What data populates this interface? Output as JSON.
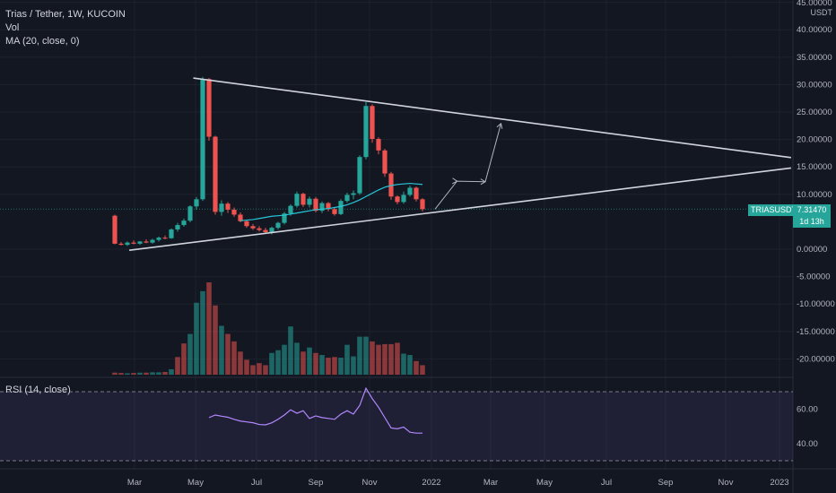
{
  "legend": {
    "symbol_line": "Trias / Tether, 1W, KUCOIN",
    "volume": "Vol",
    "ma": "MA (20, close, 0)",
    "rsi": "RSI (14, close)"
  },
  "price_axis": {
    "quote": "USDT",
    "ticks": [
      "45.00000",
      "40.00000",
      "35.00000",
      "30.00000",
      "25.00000",
      "20.00000",
      "15.00000",
      "10.00000",
      "0.00000",
      "-5.00000",
      "-10.00000",
      "-15.00000",
      "-20.00000"
    ],
    "tick_values": [
      45,
      40,
      35,
      30,
      25,
      20,
      15,
      10,
      0,
      -5,
      -10,
      -15,
      -20
    ]
  },
  "rsi_axis": {
    "ticks": [
      "60.00",
      "40.00"
    ],
    "tick_values": [
      60,
      40
    ],
    "upper_band": 70,
    "lower_band": 30
  },
  "time_axis": {
    "labels": [
      "Mar",
      "May",
      "Jul",
      "Sep",
      "Nov",
      "2022",
      "Mar",
      "May",
      "Jul",
      "Sep",
      "Nov",
      "2023"
    ]
  },
  "last_price": {
    "symbol": "TRIASUSDT",
    "value": "7.31470",
    "countdown": "1d 13h"
  },
  "colors": {
    "up": "#26a69a",
    "down": "#ef5350",
    "ma": "#26c6da",
    "rsi": "#b388ff",
    "background": "#131722",
    "trendline": "#d1d4dc"
  },
  "chart_data": {
    "type": "candlestick",
    "title": "Trias / Tether, 1W, KUCOIN",
    "ylim": [
      -22,
      45
    ],
    "candles_ohlc": [
      [
        6.1,
        6.3,
        0.9,
        1.0
      ],
      [
        1.0,
        1.3,
        0.7,
        0.8
      ],
      [
        0.8,
        1.4,
        0.6,
        1.2
      ],
      [
        1.2,
        1.6,
        0.9,
        1.0
      ],
      [
        1.0,
        1.5,
        0.8,
        1.4
      ],
      [
        1.4,
        1.8,
        1.1,
        1.2
      ],
      [
        1.2,
        1.9,
        1.0,
        1.7
      ],
      [
        1.7,
        2.3,
        1.4,
        2.1
      ],
      [
        2.1,
        2.5,
        1.8,
        2.0
      ],
      [
        2.0,
        3.8,
        1.9,
        3.6
      ],
      [
        3.6,
        4.8,
        3.2,
        4.4
      ],
      [
        4.4,
        5.6,
        4.1,
        5.2
      ],
      [
        5.2,
        8.0,
        4.9,
        7.8
      ],
      [
        7.8,
        9.5,
        7.2,
        9.1
      ],
      [
        9.1,
        31.4,
        8.8,
        31.0
      ],
      [
        31.0,
        31.2,
        19.8,
        20.5
      ],
      [
        20.5,
        20.7,
        6.3,
        6.8
      ],
      [
        6.8,
        8.9,
        6.1,
        8.3
      ],
      [
        8.3,
        8.6,
        6.6,
        7.2
      ],
      [
        7.2,
        7.6,
        5.9,
        6.3
      ],
      [
        6.3,
        6.7,
        4.9,
        5.1
      ],
      [
        5.1,
        5.4,
        3.9,
        4.2
      ],
      [
        4.2,
        4.6,
        3.5,
        3.8
      ],
      [
        3.8,
        4.2,
        3.2,
        3.5
      ],
      [
        3.5,
        3.9,
        2.8,
        3.1
      ],
      [
        3.1,
        4.1,
        2.7,
        3.9
      ],
      [
        3.9,
        5.0,
        3.6,
        4.8
      ],
      [
        4.8,
        6.8,
        4.5,
        6.5
      ],
      [
        6.5,
        8.2,
        6.1,
        7.9
      ],
      [
        7.9,
        10.5,
        7.6,
        10.1
      ],
      [
        10.1,
        10.3,
        7.7,
        8.1
      ],
      [
        8.1,
        9.6,
        7.6,
        9.2
      ],
      [
        9.2,
        9.5,
        6.7,
        7.0
      ],
      [
        7.0,
        8.7,
        6.6,
        8.4
      ],
      [
        8.4,
        8.6,
        6.9,
        7.3
      ],
      [
        7.3,
        7.6,
        6.1,
        6.4
      ],
      [
        6.4,
        9.1,
        6.2,
        8.8
      ],
      [
        8.8,
        10.3,
        8.5,
        9.9
      ],
      [
        9.9,
        10.7,
        9.1,
        10.2
      ],
      [
        10.2,
        17.1,
        9.9,
        16.8
      ],
      [
        16.8,
        26.8,
        16.4,
        26.1
      ],
      [
        26.1,
        26.4,
        19.4,
        20.1
      ],
      [
        20.1,
        20.4,
        17.3,
        18.0
      ],
      [
        18.0,
        18.3,
        13.2,
        13.8
      ],
      [
        13.8,
        14.1,
        9.0,
        9.6
      ],
      [
        9.6,
        9.8,
        8.2,
        8.6
      ],
      [
        8.6,
        10.5,
        8.3,
        9.9
      ],
      [
        9.9,
        11.6,
        9.6,
        11.2
      ],
      [
        11.2,
        11.4,
        8.7,
        9.1
      ],
      [
        9.1,
        9.3,
        6.9,
        7.3
      ]
    ],
    "ma20": [
      null,
      null,
      null,
      null,
      null,
      null,
      null,
      null,
      null,
      null,
      null,
      null,
      null,
      null,
      null,
      null,
      null,
      null,
      null,
      null,
      5.2,
      5.3,
      5.4,
      5.6,
      5.8,
      6.0,
      6.1,
      6.2,
      6.4,
      6.6,
      6.8,
      7.0,
      7.2,
      7.3,
      7.4,
      7.6,
      7.8,
      8.1,
      8.5,
      9.0,
      9.6,
      10.2,
      10.8,
      11.3,
      11.6,
      11.8,
      11.9,
      12.0,
      11.9,
      11.8
    ],
    "volume": [
      0.3,
      0.25,
      0.2,
      0.25,
      0.3,
      0.3,
      0.35,
      0.35,
      0.4,
      0.8,
      2.6,
      4.6,
      6.0,
      10.6,
      12.3,
      13.6,
      10.2,
      7.2,
      6.0,
      4.9,
      3.4,
      2.2,
      1.4,
      1.7,
      1.4,
      3.2,
      3.6,
      4.4,
      7.1,
      4.7,
      3.4,
      4.0,
      3.2,
      2.9,
      2.5,
      2.6,
      2.5,
      4.4,
      2.7,
      5.6,
      5.6,
      4.9,
      4.4,
      4.5,
      4.5,
      4.7,
      3.1,
      2.9,
      2.0,
      1.4
    ],
    "volume_up": [
      false,
      false,
      true,
      false,
      true,
      false,
      true,
      true,
      false,
      true,
      false,
      false,
      true,
      true,
      true,
      false,
      false,
      true,
      false,
      false,
      false,
      false,
      false,
      false,
      false,
      true,
      true,
      true,
      true,
      true,
      false,
      true,
      false,
      true,
      false,
      false,
      true,
      true,
      true,
      true,
      true,
      false,
      false,
      false,
      false,
      false,
      true,
      true,
      false,
      false
    ],
    "rsi": [
      null,
      null,
      null,
      null,
      null,
      null,
      null,
      null,
      null,
      null,
      null,
      null,
      null,
      null,
      null,
      55.0,
      56.5,
      55.8,
      55.2,
      54.0,
      53.0,
      52.5,
      52.0,
      51.0,
      50.8,
      52.0,
      54.0,
      56.5,
      59.5,
      57.5,
      59.0,
      54.5,
      56.0,
      55.0,
      54.5,
      54.0,
      57.0,
      59.0,
      57.0,
      62.0,
      72.0,
      66.0,
      61.0,
      55.0,
      49.0,
      48.5,
      49.5,
      46.5,
      46.0,
      46.0
    ],
    "drawings": {
      "upper_trendline": "from first peak across second peak",
      "lower_trendline": "rising support line",
      "projection": "arrow path"
    }
  }
}
